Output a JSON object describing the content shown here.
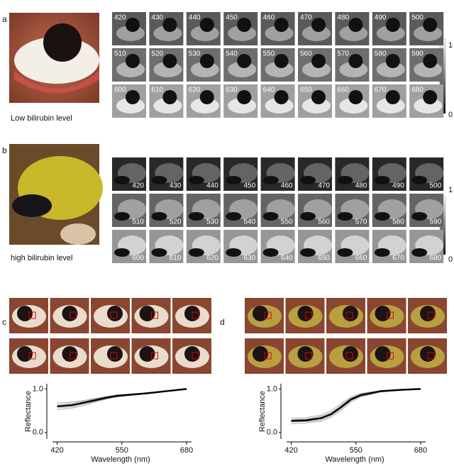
{
  "panels": {
    "a": {
      "label": "a",
      "caption": "Low bilirubin level",
      "wavelengths": [
        420,
        430,
        440,
        450,
        460,
        470,
        480,
        490,
        500,
        510,
        520,
        530,
        540,
        550,
        560,
        570,
        580,
        590,
        600,
        610,
        620,
        630,
        640,
        650,
        660,
        670,
        680
      ],
      "colorbar_ticks": [
        1,
        0
      ]
    },
    "b": {
      "label": "b",
      "caption": "high bilirubin level",
      "wavelengths": [
        420,
        430,
        440,
        450,
        460,
        470,
        480,
        490,
        500,
        510,
        520,
        530,
        540,
        550,
        560,
        570,
        580,
        590,
        600,
        610,
        620,
        630,
        640,
        650,
        660,
        670,
        680
      ],
      "colorbar_ticks": [
        1,
        0
      ]
    },
    "c": {
      "label": "c"
    },
    "d": {
      "label": "d"
    }
  },
  "chart_data": [
    {
      "type": "line",
      "x_label": "Wavelength (nm)",
      "y_label": "Reflectance",
      "x": [
        420,
        450,
        480,
        500,
        520,
        540,
        560,
        600,
        640,
        680
      ],
      "series": [
        {
          "color": "#999999",
          "values": [
            0.68,
            0.7,
            0.75,
            0.79,
            0.83,
            0.86,
            0.88,
            0.91,
            0.95,
            1.0
          ]
        },
        {
          "color": "#999999",
          "values": [
            0.52,
            0.56,
            0.64,
            0.71,
            0.77,
            0.82,
            0.85,
            0.89,
            0.95,
            1.0
          ]
        },
        {
          "color": "#999999",
          "values": [
            0.64,
            0.67,
            0.73,
            0.78,
            0.82,
            0.87,
            0.88,
            0.91,
            0.96,
            1.0
          ]
        },
        {
          "color": "#999999",
          "values": [
            0.56,
            0.59,
            0.67,
            0.73,
            0.79,
            0.83,
            0.85,
            0.89,
            0.94,
            1.0
          ]
        },
        {
          "color": "#000000",
          "values": [
            0.6,
            0.63,
            0.7,
            0.75,
            0.8,
            0.84,
            0.86,
            0.9,
            0.95,
            1.0
          ]
        }
      ],
      "xlim": [
        405,
        690
      ],
      "xticks": [
        420,
        550,
        680
      ],
      "ylim": [
        -0.15,
        1.12
      ],
      "yticks": [
        {
          "value": 0,
          "label": "0.0"
        },
        {
          "value": 1,
          "label": "1.0"
        }
      ]
    },
    {
      "type": "line",
      "x_label": "Wavelength (nm)",
      "y_label": "Reflectance",
      "x": [
        420,
        450,
        480,
        500,
        520,
        540,
        560,
        600,
        640,
        680
      ],
      "series": [
        {
          "color": "#999999",
          "values": [
            0.33,
            0.34,
            0.4,
            0.5,
            0.66,
            0.82,
            0.9,
            0.96,
            0.98,
            1.0
          ]
        },
        {
          "color": "#999999",
          "values": [
            0.2,
            0.22,
            0.26,
            0.35,
            0.5,
            0.7,
            0.82,
            0.93,
            0.97,
            1.0
          ]
        },
        {
          "color": "#999999",
          "values": [
            0.3,
            0.31,
            0.37,
            0.46,
            0.62,
            0.79,
            0.88,
            0.95,
            0.98,
            1.0
          ]
        },
        {
          "color": "#999999",
          "values": [
            0.24,
            0.25,
            0.29,
            0.38,
            0.54,
            0.73,
            0.84,
            0.94,
            0.97,
            1.0
          ]
        },
        {
          "color": "#000000",
          "values": [
            0.27,
            0.28,
            0.33,
            0.42,
            0.58,
            0.76,
            0.86,
            0.95,
            0.98,
            1.0
          ]
        }
      ],
      "xlim": [
        405,
        690
      ],
      "xticks": [
        420,
        550,
        680
      ],
      "ylim": [
        -0.15,
        1.12
      ],
      "yticks": [
        {
          "value": 0,
          "label": "0.0"
        },
        {
          "value": 1,
          "label": "1.0"
        }
      ]
    }
  ]
}
